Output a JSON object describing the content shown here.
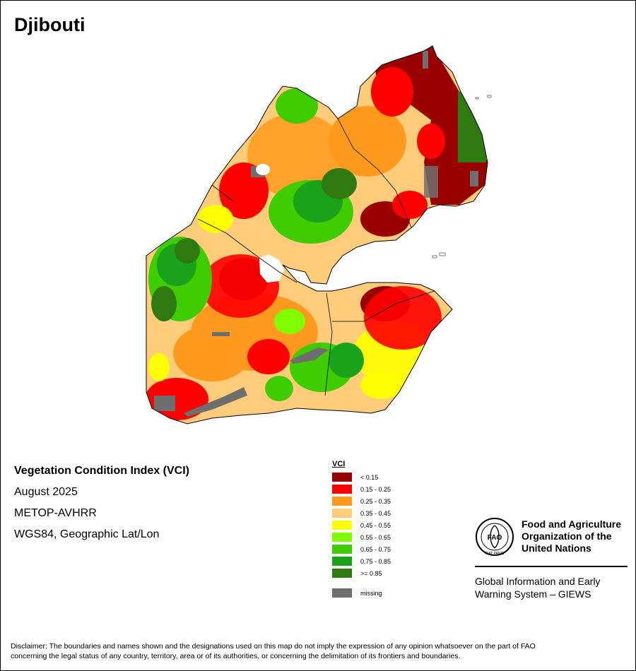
{
  "map_title": "Djibouti",
  "info": {
    "index_name": "Vegetation Condition Index (VCI)",
    "period": "August 2025",
    "sensor": "METOP-AVHRR",
    "projection": "WGS84, Geographic Lat/Lon"
  },
  "legend": {
    "title": "VCI",
    "classes": [
      {
        "label": "< 0.15",
        "color": "#990000"
      },
      {
        "label": "0.15 - 0.25",
        "color": "#ff0000"
      },
      {
        "label": "0.25 - 0.35",
        "color": "#ff9a1f"
      },
      {
        "label": "0.35 - 0.45",
        "color": "#ffcc7a"
      },
      {
        "label": "0.45 - 0.55",
        "color": "#ffff00"
      },
      {
        "label": "0.55 - 0.65",
        "color": "#80ff00"
      },
      {
        "label": "0.65 - 0.75",
        "color": "#3fcc00"
      },
      {
        "label": "0.75 - 0.85",
        "color": "#1aa31a"
      },
      {
        "label": ">= 0.85",
        "color": "#2e7a0f"
      }
    ],
    "missing": {
      "label": "missing",
      "color": "#6e6e6e"
    }
  },
  "organization": {
    "name_line1": "Food and Agriculture",
    "name_line2": "Organization of the",
    "name_line3": "United Nations",
    "system_line1": "Global Information and Early",
    "system_line2": "Warning System – GIEWS",
    "logo_text": "FIAT PANIS",
    "logo_letters": "FAO"
  },
  "disclaimer_line1": "Disclaimer: The boundaries and names shown and the designations used on this map do not imply the expression of any opinion whatsoever on the part of FAO",
  "disclaimer_line2": "concerning the legal status of any country, territory, area or of its authorities, or concerning the delimitation of its frontiers and boundaries."
}
